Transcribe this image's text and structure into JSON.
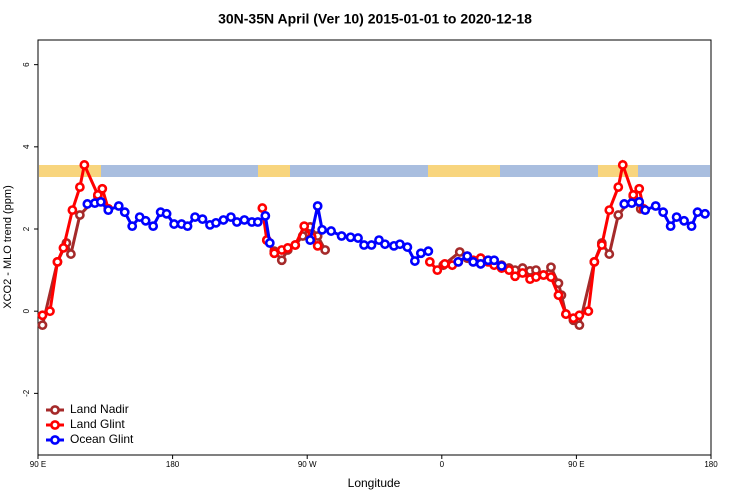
{
  "chart_data": {
    "type": "line",
    "title": "30N-35N April (Ver 10)   2015-01-01 to 2020-12-18",
    "x_label": "Longitude",
    "y_label": "XCO2 - MLO trend (ppm)",
    "xlim": [
      90,
      540
    ],
    "ylim": [
      -3.5,
      6.6
    ],
    "xticks": [
      {
        "value": 90,
        "label": "90 E"
      },
      {
        "value": 180,
        "label": "180"
      },
      {
        "value": 270,
        "label": "90 W"
      },
      {
        "value": 360,
        "label": "0"
      },
      {
        "value": 450,
        "label": "90 E"
      },
      {
        "value": 540,
        "label": "180"
      }
    ],
    "yticks": [
      -2,
      0,
      2,
      4,
      6
    ],
    "legend": "bottomleft",
    "series": [
      {
        "name": "Land Nadir",
        "color": "#a52a2a",
        "x": [
          93,
          103,
          109,
          112,
          118,
          130,
          137,
          null,
          243,
          248,
          253,
          257,
          262,
          267,
          272,
          277,
          282,
          null,
          361,
          372,
          377,
          381,
          386,
          391,
          395,
          400,
          405,
          409,
          414,
          419,
          423,
          428,
          433,
          438,
          440,
          443,
          448,
          452,
          462,
          467,
          472,
          478,
          488,
          493
        ],
        "values": [
          -0.34,
          1.2,
          1.66,
          1.39,
          2.34,
          2.8,
          2.49,
          null,
          1.73,
          1.46,
          1.24,
          1.49,
          1.61,
          1.83,
          2.05,
          1.83,
          1.49,
          null,
          1.12,
          1.44,
          1.29,
          1.2,
          1.29,
          1.24,
          1.17,
          1.12,
          1.05,
          1.0,
          1.05,
          0.98,
          1.0,
          0.88,
          1.07,
          0.68,
          0.39,
          -0.07,
          -0.22,
          -0.34,
          1.2,
          1.66,
          1.39,
          2.34,
          2.8,
          2.49
        ]
      },
      {
        "name": "Land Glint",
        "color": "#ff0000",
        "x": [
          93,
          98,
          103,
          107,
          113,
          118,
          121,
          130,
          133,
          137,
          null,
          240,
          243,
          248,
          253,
          257,
          262,
          268,
          273,
          277,
          null,
          352,
          357,
          362,
          367,
          371,
          377,
          381,
          386,
          391,
          395,
          400,
          405,
          409,
          414,
          419,
          423,
          428,
          433,
          438,
          443,
          448,
          452,
          458,
          462,
          467,
          472,
          478,
          481,
          488,
          492,
          495
        ],
        "values": [
          -0.1,
          0,
          1.2,
          1.54,
          2.46,
          3.02,
          3.56,
          2.83,
          2.98,
          2.49,
          null,
          2.51,
          1.73,
          1.41,
          1.49,
          1.54,
          1.61,
          2.07,
          1.8,
          1.59,
          null,
          1.2,
          1.0,
          1.15,
          1.12,
          1.2,
          1.34,
          1.24,
          1.29,
          1.2,
          1.12,
          1.05,
          1.0,
          0.85,
          0.93,
          0.78,
          0.83,
          0.88,
          0.83,
          0.39,
          -0.07,
          -0.17,
          -0.1,
          0,
          1.2,
          1.61,
          2.46,
          3.02,
          3.56,
          2.83,
          2.98,
          2.49
        ]
      },
      {
        "name": "Ocean Glint",
        "color": "#0000ff",
        "x": [
          123,
          128,
          132,
          137,
          144,
          148,
          153,
          158,
          162,
          167,
          172,
          176,
          181,
          186,
          190,
          195,
          200,
          205,
          209,
          214,
          219,
          223,
          228,
          233,
          237,
          242,
          245,
          null,
          272,
          277,
          280,
          286,
          293,
          299,
          304,
          308,
          313,
          318,
          322,
          328,
          332,
          337,
          342,
          346,
          351,
          null,
          371,
          377,
          381,
          386,
          391,
          395,
          400,
          null,
          482,
          487,
          492,
          496,
          503,
          508,
          513,
          517,
          522,
          527,
          531,
          536
        ],
        "values": [
          2.61,
          2.63,
          2.66,
          2.46,
          2.56,
          2.41,
          2.07,
          2.29,
          2.2,
          2.07,
          2.41,
          2.37,
          2.12,
          2.12,
          2.07,
          2.29,
          2.24,
          2.1,
          2.15,
          2.22,
          2.29,
          2.17,
          2.22,
          2.17,
          2.17,
          2.32,
          1.66,
          null,
          1.73,
          2.56,
          1.98,
          1.95,
          1.83,
          1.8,
          1.78,
          1.61,
          1.61,
          1.73,
          1.63,
          1.59,
          1.63,
          1.56,
          1.22,
          1.41,
          1.46,
          null,
          1.2,
          1.34,
          1.2,
          1.15,
          1.24,
          1.24,
          1.1,
          null,
          2.61,
          2.63,
          2.66,
          2.46,
          2.56,
          2.41,
          2.07,
          2.29,
          2.2,
          2.07,
          2.41,
          2.37
        ]
      }
    ]
  }
}
